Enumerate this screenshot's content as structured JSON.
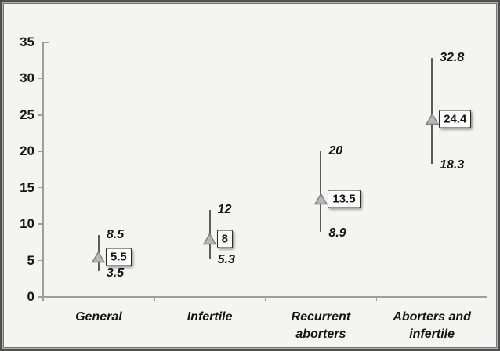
{
  "chart_data": {
    "type": "scatter",
    "subtype": "point-with-error-bars",
    "title": "",
    "xlabel": "",
    "ylabel": "",
    "ylim": [
      0,
      35
    ],
    "yticks": [
      0,
      5,
      10,
      15,
      20,
      25,
      30,
      35
    ],
    "grid": false,
    "legend": "none",
    "marker": "triangle-up-icon",
    "categories": [
      "General",
      "Infertile",
      "Recurrent aborters",
      "Aborters and infertile"
    ],
    "points": [
      {
        "category": "General",
        "value": 5.5,
        "low": 3.5,
        "high": 8.5,
        "value_label": "5.5",
        "low_label": "3.5",
        "high_label": "8.5",
        "label_lines": [
          "General"
        ]
      },
      {
        "category": "Infertile",
        "value": 8,
        "low": 5.3,
        "high": 12,
        "value_label": "8",
        "low_label": "5.3",
        "high_label": "12",
        "label_lines": [
          "Infertile"
        ]
      },
      {
        "category": "Recurrent aborters",
        "value": 13.5,
        "low": 8.9,
        "high": 20,
        "value_label": "13.5",
        "low_label": "8.9",
        "high_label": "20",
        "label_lines": [
          "Recurrent",
          "aborters"
        ]
      },
      {
        "category": "Aborters and infertile",
        "value": 24.4,
        "low": 18.3,
        "high": 32.8,
        "value_label": "24.4",
        "low_label": "18.3",
        "high_label": "32.8",
        "label_lines": [
          "Aborters and",
          "infertile"
        ]
      }
    ],
    "colors": {
      "background": "#f4f4f2",
      "axis": "#9e9e9e",
      "error_bar": "#5c5c5c",
      "marker_fill": "#b7b7b7",
      "marker_stroke": "#7e7e7e",
      "text": "#141414",
      "value_box_bg": "#fefefe",
      "value_box_border": "#2a2a2a"
    }
  }
}
